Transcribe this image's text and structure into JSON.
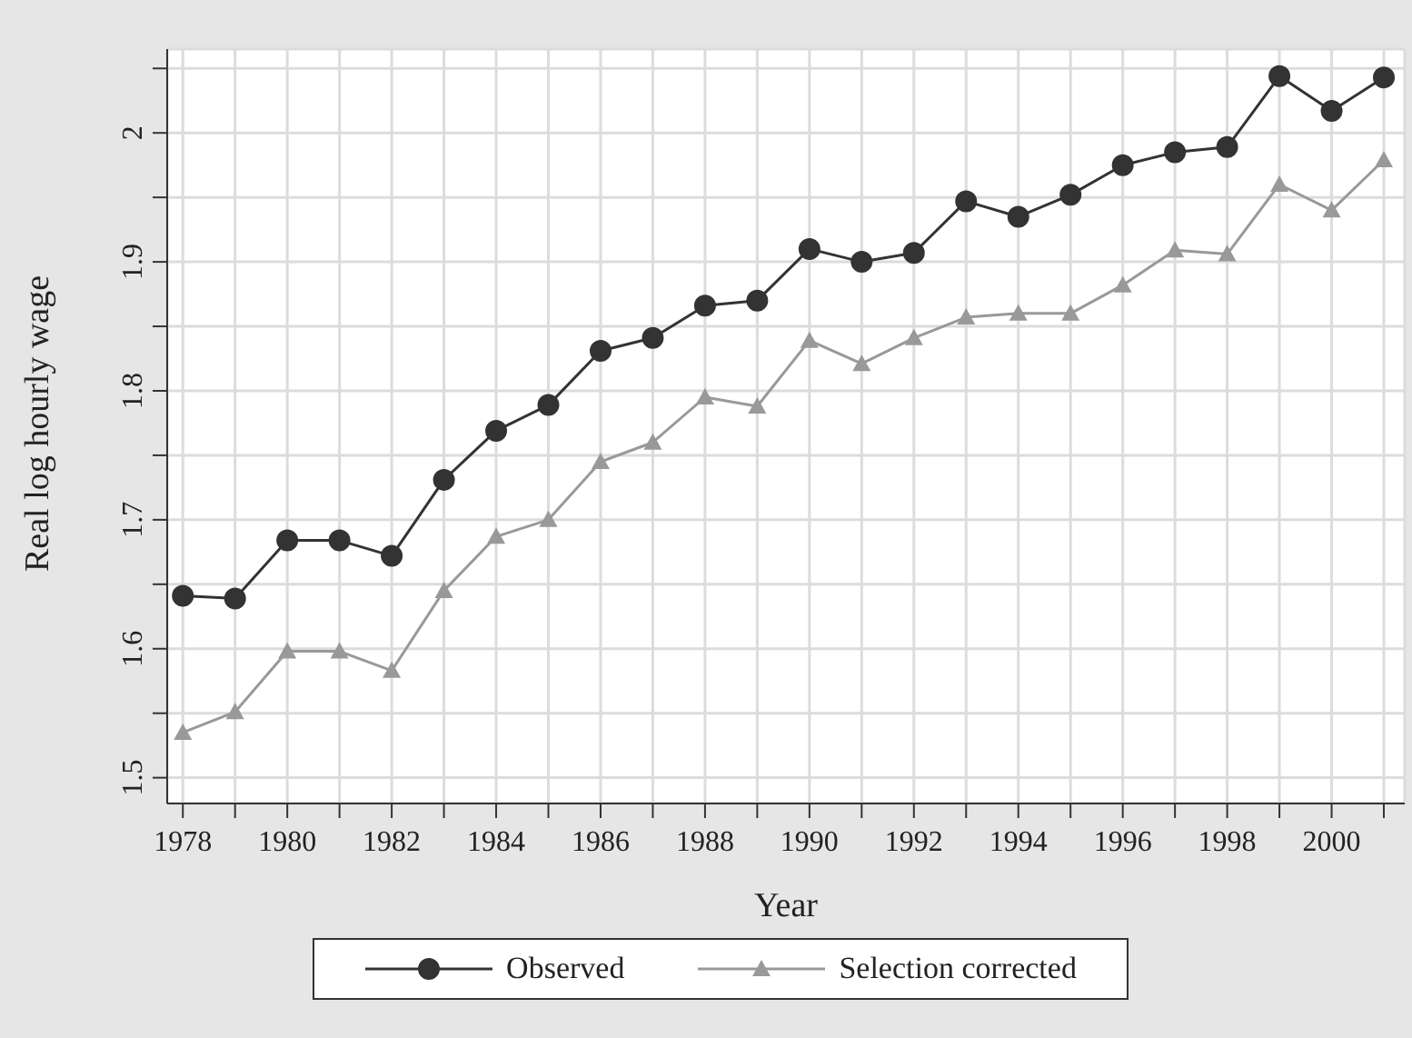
{
  "chart_data": {
    "type": "line",
    "xlabel": "Year",
    "ylabel": "Real log hourly wage",
    "x": [
      1978,
      1979,
      1980,
      1981,
      1982,
      1983,
      1984,
      1985,
      1986,
      1987,
      1988,
      1989,
      1990,
      1991,
      1992,
      1993,
      1994,
      1995,
      1996,
      1997,
      1998,
      1999,
      2000,
      2001
    ],
    "series": [
      {
        "name": "Observed",
        "color": "#333333",
        "marker": "circle",
        "values": [
          1.641,
          1.639,
          1.684,
          1.684,
          1.672,
          1.731,
          1.769,
          1.789,
          1.831,
          1.841,
          1.866,
          1.87,
          1.91,
          1.9,
          1.907,
          1.947,
          1.935,
          1.952,
          1.975,
          1.985,
          1.989,
          2.044,
          2.017,
          2.043
        ]
      },
      {
        "name": "Selection corrected",
        "color": "#999999",
        "marker": "triangle",
        "values": [
          1.535,
          1.551,
          1.598,
          1.598,
          1.583,
          1.645,
          1.687,
          1.7,
          1.745,
          1.76,
          1.795,
          1.788,
          1.839,
          1.821,
          1.841,
          1.857,
          1.86,
          1.86,
          1.882,
          1.909,
          1.906,
          1.96,
          1.94,
          1.979
        ]
      }
    ],
    "xlim": [
      1977.7,
      2001.4
    ],
    "xticks": [
      1978,
      {
        "value": 1979,
        "label": null
      },
      1980,
      {
        "value": 1981,
        "label": null
      },
      1982,
      {
        "value": 1983,
        "label": null
      },
      1984,
      {
        "value": 1985,
        "label": null
      },
      1986,
      {
        "value": 1987,
        "label": null
      },
      1988,
      {
        "value": 1989,
        "label": null
      },
      1990,
      {
        "value": 1991,
        "label": null
      },
      1992,
      {
        "value": 1993,
        "label": null
      },
      1994,
      {
        "value": 1995,
        "label": null
      },
      1996,
      {
        "value": 1997,
        "label": null
      },
      1998,
      {
        "value": 1999,
        "label": null
      },
      2000,
      {
        "value": 2001,
        "label": null
      }
    ],
    "ylim": [
      1.48,
      2.065
    ],
    "yticks": [
      1.5,
      {
        "value": 1.55,
        "label": null
      },
      1.6,
      {
        "value": 1.65,
        "label": null
      },
      1.7,
      {
        "value": 1.75,
        "label": null
      },
      1.8,
      {
        "value": 1.85,
        "label": null
      },
      1.9,
      {
        "value": 1.95,
        "label": null
      },
      2,
      {
        "value": 2.05,
        "label": null
      }
    ],
    "grid": true,
    "legend": "bottom",
    "line_style": "solid"
  }
}
